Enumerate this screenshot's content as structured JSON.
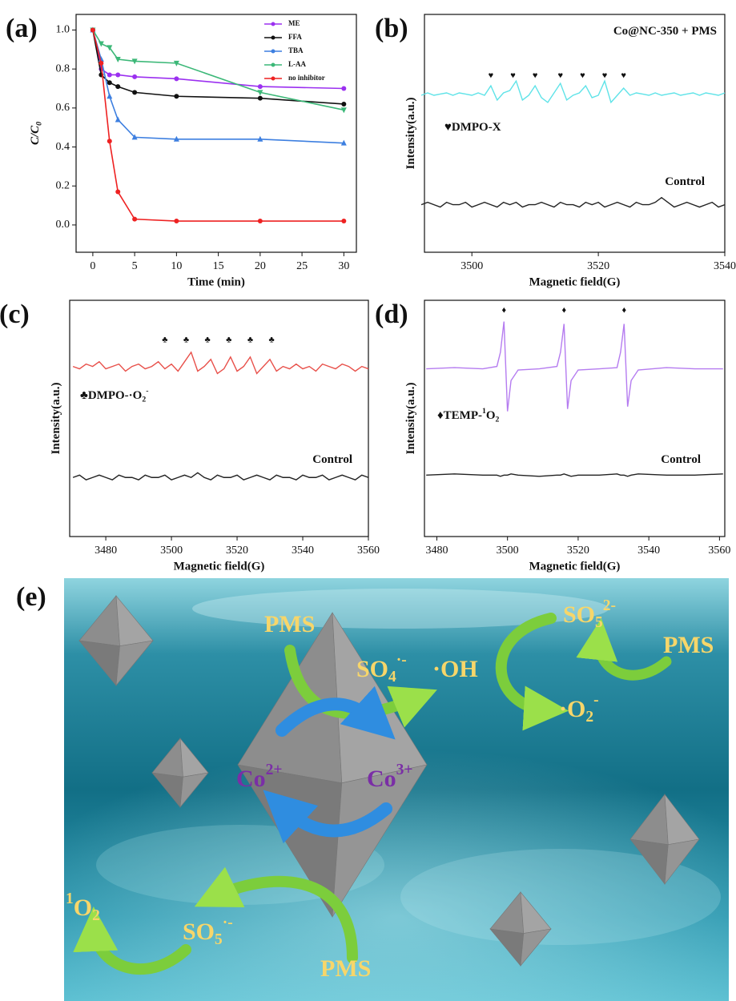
{
  "chart_data": [
    {
      "type": "line",
      "label": "(a)",
      "x_label": "Time (min)",
      "y_label": [
        {
          "t": "C/C"
        },
        {
          "t": "0",
          "s": "sub"
        }
      ],
      "x": [
        0,
        1,
        2,
        3,
        5,
        10,
        20,
        30
      ],
      "xlim": [
        -2,
        31.5
      ],
      "xticks": [
        0,
        5,
        10,
        15,
        20,
        25,
        30
      ],
      "ylim": [
        -0.14,
        1.08
      ],
      "yticks": [
        {
          "value": 0,
          "label": "0.0"
        },
        0.2,
        0.4,
        0.6,
        0.8,
        {
          "value": 1,
          "label": "1.0"
        }
      ],
      "legend": "upper right",
      "series": [
        {
          "name": "ME",
          "color": "#9b30f0",
          "marker": "o",
          "values": [
            1.0,
            0.8,
            0.77,
            0.77,
            0.76,
            0.75,
            0.71,
            0.7
          ]
        },
        {
          "name": "FFA",
          "color": "#111111",
          "marker": "o",
          "values": [
            1.0,
            0.77,
            0.73,
            0.71,
            0.68,
            0.66,
            0.65,
            0.62
          ]
        },
        {
          "name": "TBA",
          "color": "#3d7fe0",
          "marker": "^",
          "values": [
            1.0,
            0.85,
            0.66,
            0.54,
            0.45,
            0.44,
            0.44,
            0.42
          ]
        },
        {
          "name": "L-AA",
          "color": "#3cb878",
          "marker": "v",
          "values": [
            1.0,
            0.93,
            0.91,
            0.85,
            0.84,
            0.83,
            0.68,
            0.59
          ]
        },
        {
          "name": "no inhibitor",
          "color": "#ee2222",
          "marker": "o",
          "values": [
            1.0,
            0.83,
            0.43,
            0.17,
            0.03,
            0.02,
            0.02,
            0.02
          ]
        }
      ]
    },
    {
      "type": "spectrum",
      "label": "(b)",
      "x_label": "Magnetic field(G)",
      "y_label": [
        {
          "t": "Intensity(a.u.)"
        }
      ],
      "x": [
        3492,
        3493,
        3494,
        3495,
        3496,
        3497,
        3498,
        3499,
        3500,
        3501,
        3502,
        3503,
        3504,
        3505,
        3506,
        3507,
        3508,
        3509,
        3510,
        3511,
        3512,
        3513,
        3514,
        3515,
        3516,
        3517,
        3518,
        3519,
        3520,
        3521,
        3522,
        3523,
        3524,
        3525,
        3526,
        3527,
        3528,
        3529,
        3530,
        3531,
        3532,
        3533,
        3534,
        3535,
        3536,
        3537,
        3538,
        3539,
        3540
      ],
      "xlim": [
        3492.5,
        3540
      ],
      "xticks": [
        3500,
        3520,
        3540
      ],
      "ylim": [
        0,
        1
      ],
      "series": [
        {
          "color": "#5fe3e8",
          "values": [
            0.66,
            0.67,
            0.66,
            0.665,
            0.67,
            0.66,
            0.67,
            0.665,
            0.66,
            0.67,
            0.66,
            0.7,
            0.64,
            0.67,
            0.68,
            0.72,
            0.64,
            0.66,
            0.7,
            0.65,
            0.63,
            0.67,
            0.71,
            0.64,
            0.66,
            0.67,
            0.7,
            0.65,
            0.66,
            0.72,
            0.63,
            0.66,
            0.69,
            0.66,
            0.67,
            0.665,
            0.66,
            0.67,
            0.66,
            0.665,
            0.67,
            0.66,
            0.665,
            0.67,
            0.66,
            0.67,
            0.665,
            0.66,
            0.67
          ]
        },
        {
          "color": "#222222",
          "values": [
            0.2,
            0.21,
            0.2,
            0.19,
            0.21,
            0.2,
            0.2,
            0.21,
            0.19,
            0.2,
            0.21,
            0.2,
            0.19,
            0.21,
            0.2,
            0.21,
            0.19,
            0.2,
            0.2,
            0.21,
            0.2,
            0.19,
            0.21,
            0.2,
            0.2,
            0.19,
            0.21,
            0.2,
            0.21,
            0.19,
            0.2,
            0.21,
            0.2,
            0.19,
            0.21,
            0.2,
            0.2,
            0.21,
            0.23,
            0.21,
            0.19,
            0.2,
            0.21,
            0.2,
            0.19,
            0.2,
            0.21,
            0.19,
            0.2
          ]
        }
      ],
      "peak_marks": {
        "symbol": "♥",
        "x": [
          3503,
          3506.5,
          3510,
          3514,
          3517.5,
          3521,
          3524
        ]
      },
      "annotations": [
        [
          {
            "t": "Co@NC-350 + PMS"
          }
        ],
        [
          {
            "t": "♥DMPO-X"
          }
        ],
        [
          {
            "t": "Control"
          }
        ]
      ]
    },
    {
      "type": "spectrum",
      "label": "(c)",
      "x_label": "Magnetic field(G)",
      "y_label": [
        {
          "t": "Intensity(a.u.)"
        }
      ],
      "x": [
        3470,
        3472,
        3474,
        3476,
        3478,
        3480,
        3482,
        3484,
        3486,
        3488,
        3490,
        3492,
        3494,
        3496,
        3498,
        3500,
        3502,
        3504,
        3506,
        3508,
        3510,
        3512,
        3514,
        3516,
        3518,
        3520,
        3522,
        3524,
        3526,
        3528,
        3530,
        3532,
        3534,
        3536,
        3538,
        3540,
        3542,
        3544,
        3546,
        3548,
        3550,
        3552,
        3554,
        3556,
        3558,
        3560
      ],
      "xlim": [
        3469,
        3560
      ],
      "xticks": [
        3480,
        3500,
        3520,
        3540,
        3560
      ],
      "ylim": [
        0,
        1
      ],
      "series": [
        {
          "color": "#e8504a",
          "values": [
            0.72,
            0.71,
            0.73,
            0.72,
            0.74,
            0.71,
            0.72,
            0.73,
            0.7,
            0.72,
            0.73,
            0.71,
            0.72,
            0.74,
            0.71,
            0.73,
            0.7,
            0.74,
            0.78,
            0.7,
            0.72,
            0.75,
            0.69,
            0.71,
            0.76,
            0.7,
            0.72,
            0.76,
            0.69,
            0.72,
            0.75,
            0.7,
            0.72,
            0.71,
            0.73,
            0.71,
            0.72,
            0.7,
            0.73,
            0.72,
            0.71,
            0.73,
            0.72,
            0.7,
            0.72,
            0.71
          ]
        },
        {
          "color": "#222222",
          "values": [
            0.25,
            0.26,
            0.24,
            0.25,
            0.26,
            0.25,
            0.24,
            0.26,
            0.25,
            0.25,
            0.24,
            0.26,
            0.25,
            0.25,
            0.26,
            0.24,
            0.25,
            0.26,
            0.25,
            0.27,
            0.25,
            0.24,
            0.26,
            0.25,
            0.25,
            0.26,
            0.24,
            0.25,
            0.26,
            0.25,
            0.24,
            0.26,
            0.25,
            0.25,
            0.24,
            0.26,
            0.25,
            0.25,
            0.26,
            0.24,
            0.25,
            0.26,
            0.25,
            0.24,
            0.26,
            0.25
          ]
        }
      ],
      "peak_marks": {
        "symbol": "♣",
        "x": [
          3498,
          3504.5,
          3511,
          3517.5,
          3524,
          3530.5
        ]
      },
      "annotations": [
        [
          {
            "t": "♣DMPO-·O"
          },
          {
            "t": "2",
            "s": "sub"
          },
          {
            "t": "-",
            "s": "sup"
          }
        ],
        [
          {
            "t": "Control"
          }
        ]
      ]
    },
    {
      "type": "spectrum",
      "label": "(d)",
      "x_label": "Magnetic field(G)",
      "y_label": [
        {
          "t": "Intensity(a.u.)"
        }
      ],
      "x": [
        3477,
        3485,
        3493,
        3497,
        3498,
        3499,
        3500,
        3501,
        3503,
        3509,
        3514,
        3515,
        3516,
        3517,
        3518,
        3520,
        3526,
        3531,
        3532,
        3533,
        3534,
        3535,
        3537,
        3545,
        3553,
        3561
      ],
      "xlim": [
        3476.5,
        3561.5
      ],
      "xticks": [
        3480,
        3500,
        3520,
        3540,
        3560
      ],
      "ylim": [
        0,
        1
      ],
      "series": [
        {
          "color": "#b57cf0",
          "values": [
            0.71,
            0.715,
            0.71,
            0.72,
            0.78,
            0.91,
            0.53,
            0.66,
            0.705,
            0.71,
            0.72,
            0.78,
            0.9,
            0.54,
            0.66,
            0.705,
            0.71,
            0.715,
            0.78,
            0.9,
            0.55,
            0.66,
            0.705,
            0.715,
            0.71,
            0.71
          ]
        },
        {
          "color": "#222222",
          "values": [
            0.26,
            0.265,
            0.26,
            0.26,
            0.255,
            0.26,
            0.26,
            0.265,
            0.26,
            0.255,
            0.26,
            0.26,
            0.265,
            0.26,
            0.255,
            0.26,
            0.26,
            0.265,
            0.26,
            0.26,
            0.255,
            0.26,
            0.265,
            0.26,
            0.26,
            0.265
          ]
        }
      ],
      "peak_marks": {
        "symbol": "♦",
        "x": [
          3499,
          3516,
          3533
        ]
      },
      "annotations": [
        [
          {
            "t": "♦TEMP-"
          },
          {
            "t": "1",
            "s": "sup"
          },
          {
            "t": "O"
          },
          {
            "t": "2",
            "s": "sub"
          }
        ],
        [
          {
            "t": "Control"
          }
        ]
      ]
    }
  ],
  "scheme": {
    "label": "(e)",
    "texts": [
      [
        {
          "t": "PMS"
        }
      ],
      [
        {
          "t": "SO"
        },
        {
          "t": "4",
          "s": "sub"
        },
        {
          "t": "·-",
          "s": "sup"
        }
      ],
      [
        {
          "t": "·OH"
        }
      ],
      [
        {
          "t": "SO"
        },
        {
          "t": "5",
          "s": "sub"
        },
        {
          "t": "2-",
          "s": "sup"
        }
      ],
      [
        {
          "t": "PMS"
        }
      ],
      [
        {
          "t": "·O"
        },
        {
          "t": "2",
          "s": "sub"
        },
        {
          "t": "-",
          "s": "sup"
        }
      ],
      [
        {
          "t": "Co"
        },
        {
          "t": "2+",
          "s": "sup"
        }
      ],
      [
        {
          "t": "Co"
        },
        {
          "t": "3+",
          "s": "sup"
        }
      ],
      [
        {
          "t": "1",
          "s": "sup"
        },
        {
          "t": "O"
        },
        {
          "t": "2",
          "s": "sub"
        }
      ],
      [
        {
          "t": "SO"
        },
        {
          "t": "5",
          "s": "sub"
        },
        {
          "t": "·-",
          "s": "sup"
        }
      ],
      [
        {
          "t": "PMS"
        }
      ]
    ]
  }
}
